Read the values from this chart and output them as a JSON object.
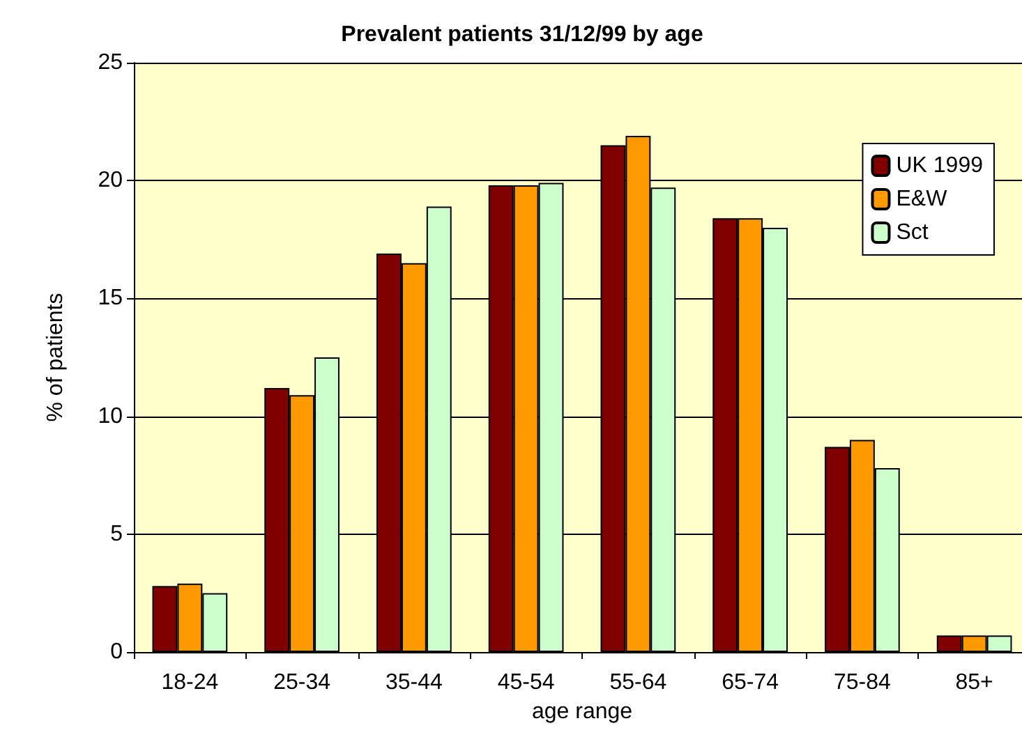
{
  "chart_data": {
    "type": "bar",
    "title": "Prevalent patients 31/12/99 by age",
    "xlabel": "age range",
    "ylabel": "% of patients",
    "categories": [
      "18-24",
      "25-34",
      "35-44",
      "45-54",
      "55-64",
      "65-74",
      "75-84",
      "85+"
    ],
    "series": [
      {
        "name": "UK 1999",
        "color": "#800000",
        "values": [
          2.8,
          11.2,
          16.9,
          19.8,
          21.5,
          18.4,
          8.7,
          0.7
        ]
      },
      {
        "name": "E&W",
        "color": "#ff9900",
        "values": [
          2.9,
          10.9,
          16.5,
          19.8,
          21.9,
          18.4,
          9.0,
          0.7
        ]
      },
      {
        "name": "Sct",
        "color": "#ccffcc",
        "values": [
          2.5,
          12.5,
          18.9,
          19.9,
          19.7,
          18.0,
          7.8,
          0.7
        ]
      }
    ],
    "ylim": [
      0,
      25
    ],
    "yticks": [
      0,
      5,
      10,
      15,
      20,
      25
    ],
    "grid": "y",
    "legend": "top right"
  }
}
